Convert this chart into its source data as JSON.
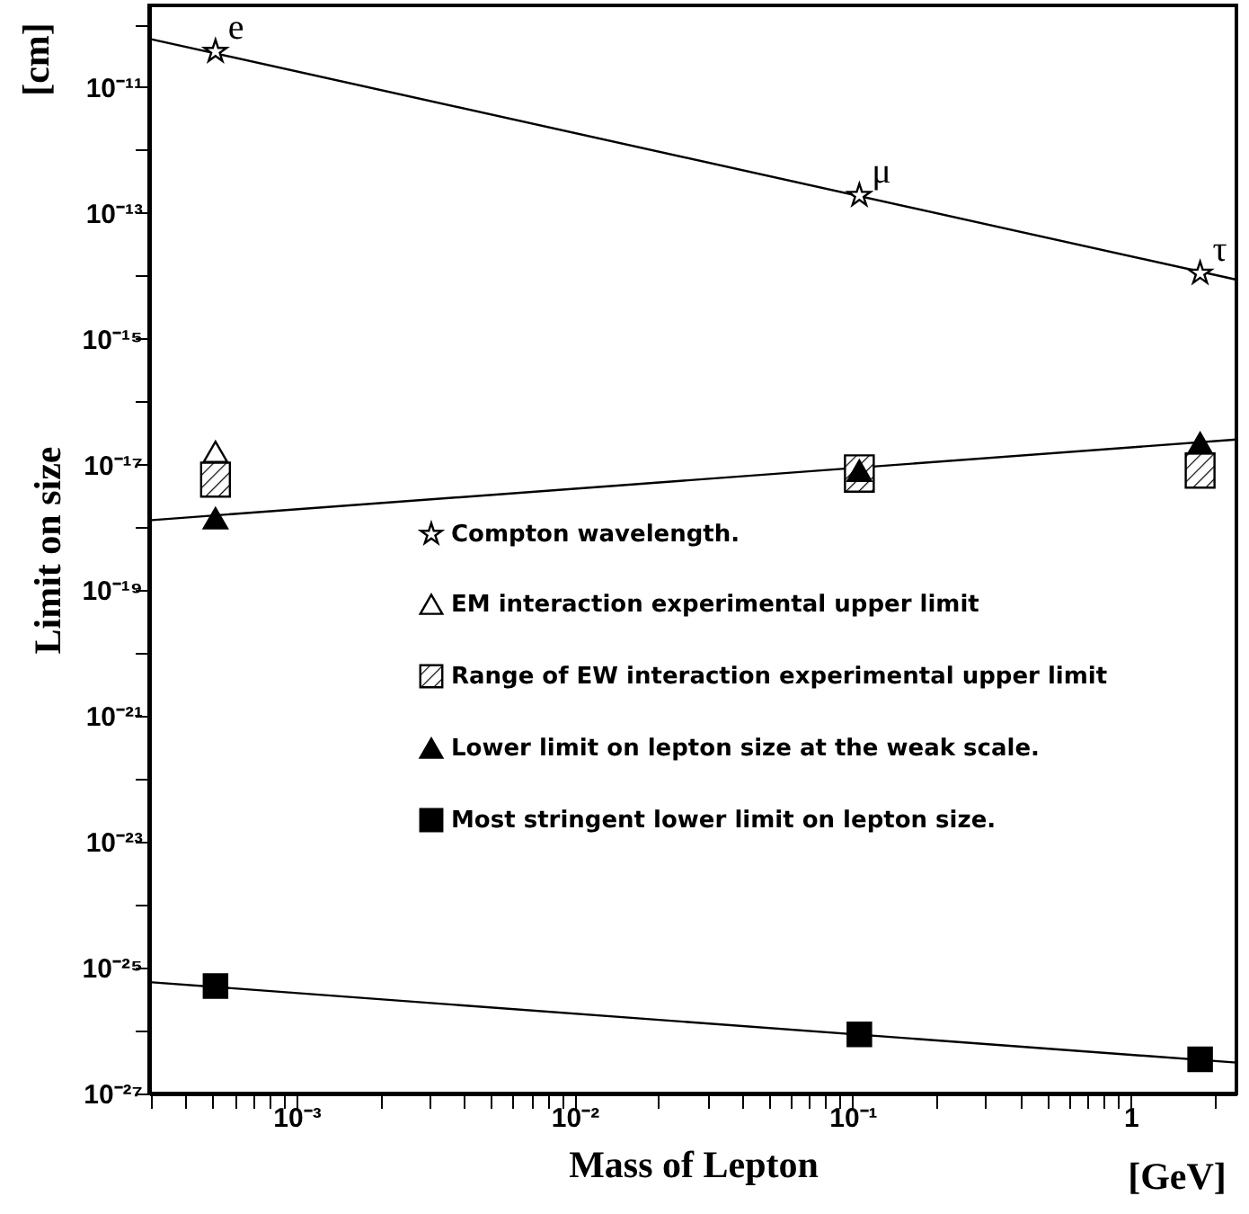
{
  "chart_data": {
    "type": "scatter",
    "xlabel": "Mass of Lepton",
    "ylabel": "Limit on size",
    "log": "xy",
    "xlim": [
      0.000295,
      2.4
    ],
    "ylim": [
      1e-27,
      2e-10
    ],
    "xticks": [
      {
        "value": 0.0003,
        "label": null
      },
      {
        "value": 0.0004,
        "label": null
      },
      {
        "value": 0.0005,
        "label": null
      },
      {
        "value": 0.0006,
        "label": null
      },
      {
        "value": 0.0007,
        "label": null
      },
      {
        "value": 0.0008,
        "label": null
      },
      {
        "value": 0.0009,
        "label": null
      },
      {
        "value": 0.001,
        "label": "10⁻³"
      },
      {
        "value": 0.002,
        "label": null
      },
      {
        "value": 0.003,
        "label": null
      },
      {
        "value": 0.004,
        "label": null
      },
      {
        "value": 0.005,
        "label": null
      },
      {
        "value": 0.006,
        "label": null
      },
      {
        "value": 0.007,
        "label": null
      },
      {
        "value": 0.008,
        "label": null
      },
      {
        "value": 0.009,
        "label": null
      },
      {
        "value": 0.01,
        "label": "10⁻²"
      },
      {
        "value": 0.02,
        "label": null
      },
      {
        "value": 0.03,
        "label": null
      },
      {
        "value": 0.04,
        "label": null
      },
      {
        "value": 0.05,
        "label": null
      },
      {
        "value": 0.06,
        "label": null
      },
      {
        "value": 0.07,
        "label": null
      },
      {
        "value": 0.08,
        "label": null
      },
      {
        "value": 0.09,
        "label": null
      },
      {
        "value": 0.1,
        "label": "10⁻¹"
      },
      {
        "value": 0.2,
        "label": null
      },
      {
        "value": 0.3,
        "label": null
      },
      {
        "value": 0.4,
        "label": null
      },
      {
        "value": 0.5,
        "label": null
      },
      {
        "value": 0.6,
        "label": null
      },
      {
        "value": 0.7,
        "label": null
      },
      {
        "value": 0.8,
        "label": null
      },
      {
        "value": 0.9,
        "label": null
      },
      {
        "value": 1,
        "label": "1"
      },
      {
        "value": 2,
        "label": null
      }
    ],
    "yticks": [
      {
        "value": 1e-10,
        "label": null
      },
      {
        "value": 1e-11,
        "label": "10⁻¹¹"
      },
      {
        "value": 1e-12,
        "label": null
      },
      {
        "value": 1e-13,
        "label": "10⁻¹³"
      },
      {
        "value": 1e-14,
        "label": null
      },
      {
        "value": 1e-15,
        "label": "10⁻¹⁵"
      },
      {
        "value": 1e-16,
        "label": null
      },
      {
        "value": 1e-17,
        "label": "10⁻¹⁷"
      },
      {
        "value": 1e-18,
        "label": null
      },
      {
        "value": 1e-19,
        "label": "10⁻¹⁹"
      },
      {
        "value": 1e-20,
        "label": null
      },
      {
        "value": 1e-21,
        "label": "10⁻²¹"
      },
      {
        "value": 1e-22,
        "label": null
      },
      {
        "value": 1e-23,
        "label": "10⁻²³"
      },
      {
        "value": 1e-24,
        "label": null
      },
      {
        "value": 1e-25,
        "label": "10⁻²⁵"
      },
      {
        "value": 1e-26,
        "label": null
      },
      {
        "value": 1e-27,
        "label": "10⁻²⁷"
      }
    ],
    "legend": "right",
    "annotations": [
      "[cm]",
      "[GeV]",
      {
        "text": "e",
        "x": 0.000511,
        "y": 3.7e-11
      },
      {
        "text": "μ",
        "x": 0.1057,
        "y": 1.9e-13
      },
      {
        "text": "τ",
        "x": 1.777,
        "y": 1.1e-14
      }
    ],
    "series": [
      {
        "type": "line",
        "color": "#000000",
        "line_style": "solid",
        "x": [
          0.000295,
          2.4
        ],
        "values": [
          5.9e-11,
          8.7e-15
        ]
      },
      {
        "type": "line",
        "color": "#000000",
        "line_style": "solid",
        "x": [
          0.000295,
          2.4
        ],
        "values": [
          1.3e-18,
          2.5e-17
        ]
      },
      {
        "type": "line",
        "color": "#000000",
        "line_style": "solid",
        "x": [
          0.000295,
          2.4
        ],
        "values": [
          5.9e-26,
          3.1e-27
        ]
      },
      {
        "name": "Compton wavelength.",
        "marker": "star",
        "color": "#ffffff",
        "x": [
          0.000511,
          0.1057,
          1.777
        ],
        "values": [
          3.7e-11,
          1.9e-13,
          1.1e-14
        ]
      },
      {
        "name": "EM interaction experimental upper limit",
        "marker": "triangle",
        "color": "#ffffff",
        "x": [
          0.000511
        ],
        "values": [
          1.6e-17
        ]
      },
      {
        "name": "Range of EW interaction experimental upper limit",
        "type": "bar",
        "marker": "square",
        "color": "#000000",
        "x": [
          0.000511,
          0.1057,
          1.777
        ],
        "base": [
          3.1e-18,
          3.7e-18,
          4.3e-18
        ],
        "values": [
          7.6e-18,
          1.03e-17,
          1.07e-17
        ]
      },
      {
        "name": "Lower limit on lepton size at the weak scale.",
        "marker": "triangle",
        "color": "#000000",
        "x": [
          0.000511,
          0.1057,
          1.777
        ],
        "values": [
          1.4e-18,
          8e-18,
          2.2e-17
        ]
      },
      {
        "name": "Most stringent lower limit on lepton size.",
        "marker": "square",
        "color": "#000000",
        "x": [
          0.000511,
          0.1057,
          1.777
        ],
        "values": [
          5.1e-26,
          8.7e-27,
          3.5e-27
        ]
      }
    ]
  }
}
